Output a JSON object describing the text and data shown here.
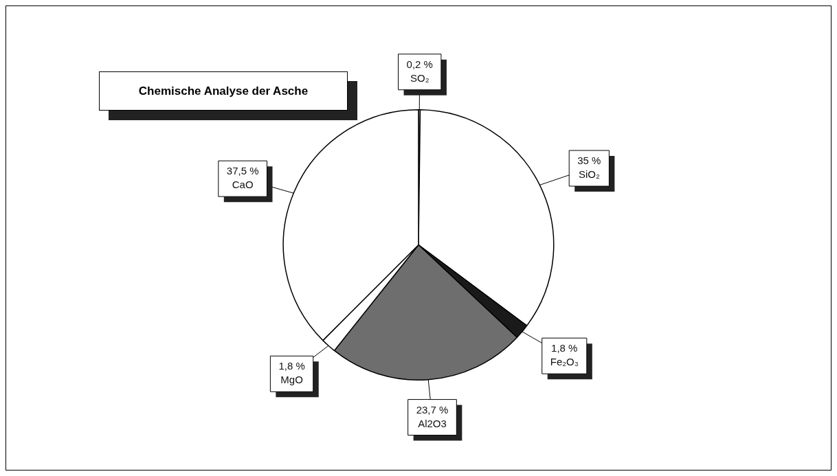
{
  "chart_data": {
    "type": "pie",
    "title": "Chemische Analyse der Asche",
    "categories": [
      "SO₂",
      "SiO₂",
      "Fe₂O₃",
      "Al2O3",
      "MgO",
      "CaO"
    ],
    "values": [
      0.2,
      35,
      1.8,
      23.7,
      1.8,
      37.5
    ],
    "value_labels": [
      "0,2 %",
      "35 %",
      "1,8 %",
      "23,7 %",
      "1,8 %",
      "37,5 %"
    ],
    "colors": [
      "#ffffff",
      "#ffffff",
      "#1a1a1a",
      "#6e6e6e",
      "#ffffff",
      "#ffffff"
    ],
    "legend": false
  }
}
